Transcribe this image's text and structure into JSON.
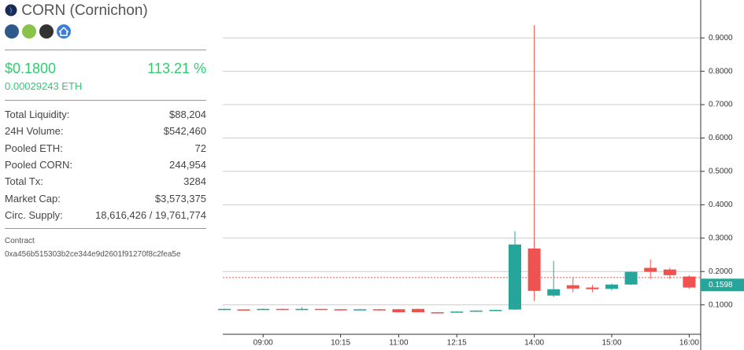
{
  "header": {
    "title": "CORN (Cornichon)",
    "price": "$0.1800",
    "change": "113.21 %",
    "eth_price": "0.00029243 ETH"
  },
  "stats": [
    {
      "label": "Total Liquidity:",
      "value": "$88,204"
    },
    {
      "label": "24H Volume:",
      "value": "$542,460"
    },
    {
      "label": "Pooled ETH:",
      "value": "72"
    },
    {
      "label": "Pooled CORN:",
      "value": "244,954"
    },
    {
      "label": "Total Tx:",
      "value": "3284"
    },
    {
      "label": "Market Cap:",
      "value": "$3,573,375"
    },
    {
      "label": "Circ. Supply:",
      "value": "18,616,426 / 19,761,774"
    }
  ],
  "contract": {
    "label": "Contract",
    "address": "0xa456b515303b2ce344e9d2601f91270f8c2fea5e"
  },
  "chart_data": {
    "type": "candlestick",
    "categories": [
      null,
      null,
      "09:00",
      null,
      null,
      null,
      "10:15",
      null,
      null,
      "11:00",
      null,
      null,
      "12:15",
      null,
      null,
      null,
      "14:00",
      null,
      null,
      null,
      "15:00",
      null,
      null,
      null,
      "16:00"
    ],
    "open": [
      0.085,
      0.0865,
      0.087,
      0.088,
      0.085,
      0.088,
      0.087,
      0.086,
      0.087,
      0.087,
      0.088,
      0.078,
      0.078,
      0.082,
      0.084,
      0.086,
      0.269,
      0.128,
      0.159,
      0.152,
      0.148,
      0.161,
      0.211,
      0.206,
      0.185
    ],
    "high": [
      0.089,
      0.087,
      0.089,
      0.089,
      0.093,
      0.088,
      0.088,
      0.088,
      0.088,
      0.088,
      0.089,
      0.079,
      0.081,
      0.084,
      0.086,
      0.321,
      0.938,
      0.232,
      0.181,
      0.16,
      0.164,
      0.2,
      0.236,
      0.211,
      0.189
    ],
    "low": [
      0.084,
      0.086,
      0.086,
      0.085,
      0.084,
      0.087,
      0.086,
      0.086,
      0.086,
      0.077,
      0.077,
      0.077,
      0.077,
      0.081,
      0.084,
      0.085,
      0.112,
      0.124,
      0.138,
      0.138,
      0.143,
      0.16,
      0.178,
      0.178,
      0.148
    ],
    "close": [
      0.088,
      0.086,
      0.088,
      0.085,
      0.088,
      0.087,
      0.086,
      0.087,
      0.086,
      0.078,
      0.078,
      0.077,
      0.08,
      0.083,
      0.085,
      0.281,
      0.142,
      0.147,
      0.149,
      0.147,
      0.161,
      0.199,
      0.199,
      0.189,
      0.152
    ],
    "up_color": "#26a69a",
    "down_color": "#ef5350",
    "ylim": [
      0.012,
      0.99
    ],
    "yticks": [
      {
        "value": 0.1,
        "label": "0.1000"
      },
      {
        "value": 0.2,
        "label": "0.2000"
      },
      {
        "value": 0.3,
        "label": "0.3000"
      },
      {
        "value": 0.4,
        "label": "0.4000"
      },
      {
        "value": 0.5,
        "label": "0.5000"
      },
      {
        "value": 0.6,
        "label": "0.6000"
      },
      {
        "value": 0.7,
        "label": "0.7000"
      },
      {
        "value": 0.8,
        "label": "0.8000"
      },
      {
        "value": 0.9,
        "label": "0.9000"
      }
    ],
    "grid": true,
    "reference_line": 0.182,
    "last_price": 0.1598
  }
}
